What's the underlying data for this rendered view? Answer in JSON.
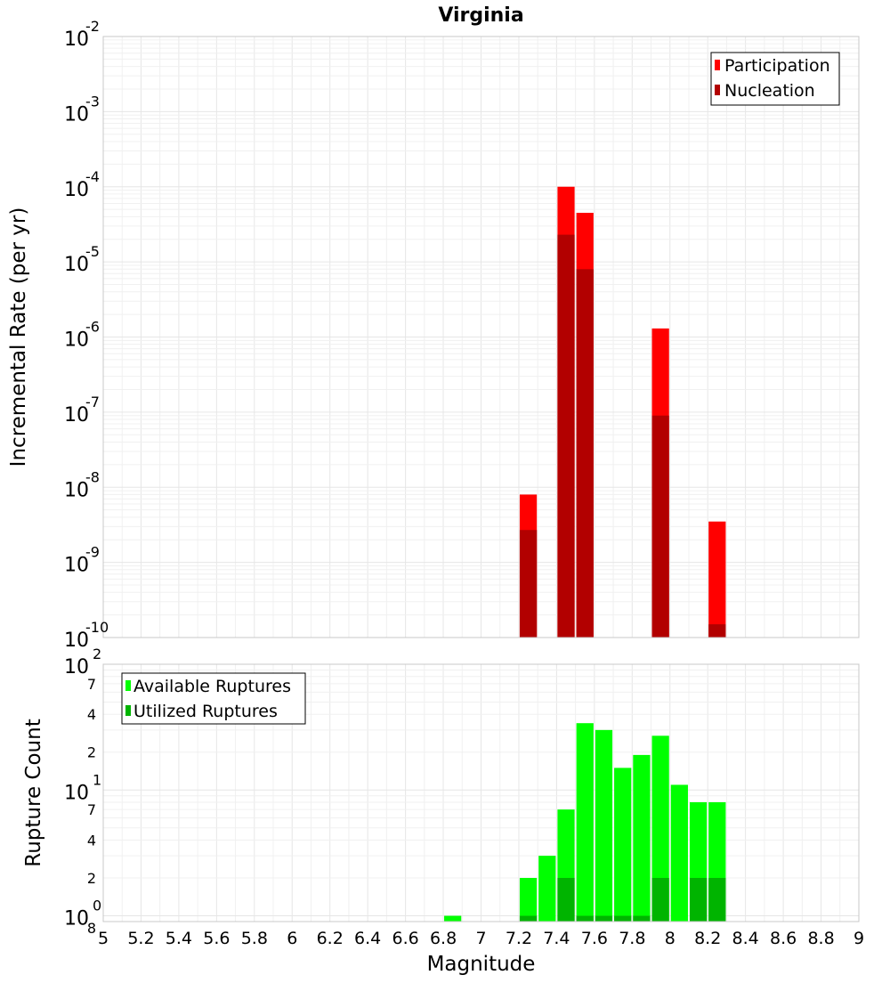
{
  "chart_data": [
    {
      "type": "bar",
      "title": "Virginia",
      "ylabel": "Incremental Rate (per yr)",
      "yscale": "log",
      "ylim": [
        1e-10,
        0.01
      ],
      "xlim": [
        5,
        9
      ],
      "y_tick_exponents": [
        "-10",
        "-9",
        "-8",
        "-7",
        "-6",
        "-5",
        "-4",
        "-3",
        "-2"
      ],
      "y_tick_base": "10",
      "grid": true,
      "legend_position": "top-right",
      "series": [
        {
          "name": "Participation",
          "color": "#ff0000",
          "x": [
            7.25,
            7.45,
            7.55,
            7.95,
            8.25
          ],
          "values": [
            8e-09,
            0.0001,
            4.5e-05,
            1.3e-06,
            3.5e-09
          ]
        },
        {
          "name": "Nucleation",
          "color": "#b20000",
          "x": [
            7.25,
            7.45,
            7.55,
            7.95,
            8.25
          ],
          "values": [
            2.7e-09,
            2.3e-05,
            8e-06,
            9e-08,
            1.5e-10
          ]
        }
      ]
    },
    {
      "type": "bar",
      "xlabel": "Magnitude",
      "ylabel": "Rupture Count",
      "yscale": "log",
      "ylim": [
        0.9,
        100
      ],
      "xlim": [
        5,
        9
      ],
      "x_ticks": [
        "5",
        "5.2",
        "5.4",
        "5.6",
        "5.8",
        "6",
        "6.2",
        "6.4",
        "6.6",
        "6.8",
        "7",
        "7.2",
        "7.4",
        "7.6",
        "7.8",
        "8",
        "8.2",
        "8.4",
        "8.6",
        "8.8",
        "9"
      ],
      "y_major_ticks": [
        {
          "base": "10",
          "exp": "2",
          "value": 100
        },
        {
          "base": "10",
          "exp": "1",
          "value": 10
        },
        {
          "base": "10",
          "exp": "0",
          "value": 1
        }
      ],
      "y_minor_ticks": [
        {
          "label": "7",
          "value": 70
        },
        {
          "label": "4",
          "value": 40
        },
        {
          "label": "2",
          "value": 20
        },
        {
          "label": "7",
          "value": 7
        },
        {
          "label": "4",
          "value": 4
        },
        {
          "label": "2",
          "value": 2
        },
        {
          "label": "8",
          "value": 0.8
        }
      ],
      "grid": true,
      "legend_position": "top-left",
      "series": [
        {
          "name": "Available Ruptures",
          "color": "#00ff00",
          "x": [
            6.85,
            7.25,
            7.35,
            7.45,
            7.55,
            7.65,
            7.75,
            7.85,
            7.95,
            8.05,
            8.15,
            8.25
          ],
          "values": [
            1,
            2,
            3,
            7,
            34,
            30,
            15,
            19,
            27,
            11,
            8,
            8
          ]
        },
        {
          "name": "Utilized Ruptures",
          "color": "#00b400",
          "x": [
            7.25,
            7.45,
            7.55,
            7.65,
            7.75,
            7.85,
            7.95,
            8.15,
            8.25
          ],
          "values": [
            1,
            2,
            1,
            1,
            1,
            1,
            2,
            2,
            2
          ]
        }
      ]
    }
  ]
}
